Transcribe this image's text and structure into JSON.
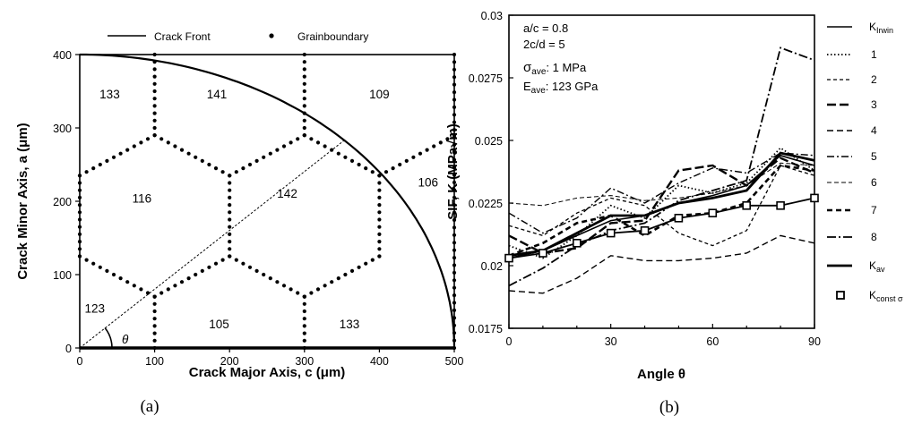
{
  "chart_data": [
    {
      "type": "scatter",
      "panel": "(a)",
      "xlabel": "Crack Major Axis, c (μm)",
      "ylabel": "Crack Minor Axis, a (μm)",
      "xlim": [
        0,
        500
      ],
      "ylim": [
        0,
        400
      ],
      "xticks": [
        "0",
        "100",
        "200",
        "300",
        "400",
        "500"
      ],
      "yticks": [
        "0",
        "100",
        "200",
        "300",
        "400"
      ],
      "legend": {
        "placement": "top",
        "entries": [
          "Crack Front",
          "Grainboundary"
        ]
      },
      "crack_front": {
        "shape": "quarter-ellipse",
        "c": 500,
        "a": 400
      },
      "angle_line": {
        "from": [
          0,
          0
        ],
        "to": [
          353,
          283
        ]
      },
      "angle_label": "θ",
      "grain_boundaries": [
        [
          [
            100,
            400
          ],
          [
            100,
            290
          ]
        ],
        [
          [
            100,
            290
          ],
          [
            0,
            235
          ]
        ],
        [
          [
            100,
            290
          ],
          [
            200,
            235
          ]
        ],
        [
          [
            200,
            235
          ],
          [
            200,
            125
          ]
        ],
        [
          [
            200,
            235
          ],
          [
            300,
            290
          ]
        ],
        [
          [
            300,
            400
          ],
          [
            300,
            290
          ]
        ],
        [
          [
            300,
            290
          ],
          [
            400,
            235
          ]
        ],
        [
          [
            400,
            235
          ],
          [
            500,
            290
          ]
        ],
        [
          [
            400,
            235
          ],
          [
            400,
            125
          ]
        ],
        [
          [
            0,
            235
          ],
          [
            0,
            125
          ]
        ],
        [
          [
            0,
            125
          ],
          [
            100,
            70
          ]
        ],
        [
          [
            100,
            70
          ],
          [
            200,
            125
          ]
        ],
        [
          [
            200,
            125
          ],
          [
            300,
            70
          ]
        ],
        [
          [
            300,
            70
          ],
          [
            400,
            125
          ]
        ],
        [
          [
            100,
            70
          ],
          [
            100,
            0
          ]
        ],
        [
          [
            300,
            70
          ],
          [
            300,
            0
          ]
        ],
        [
          [
            500,
            400
          ],
          [
            500,
            0
          ]
        ]
      ],
      "grain_labels": [
        {
          "text": "133",
          "x": 40,
          "y": 340
        },
        {
          "text": "141",
          "x": 183,
          "y": 340
        },
        {
          "text": "109",
          "x": 400,
          "y": 340
        },
        {
          "text": "106",
          "x": 465,
          "y": 220
        },
        {
          "text": "116",
          "x": 83,
          "y": 198
        },
        {
          "text": "142",
          "x": 277,
          "y": 205
        },
        {
          "text": "123",
          "x": 20,
          "y": 48
        },
        {
          "text": "105",
          "x": 186,
          "y": 27
        },
        {
          "text": "133",
          "x": 360,
          "y": 27
        }
      ]
    },
    {
      "type": "line",
      "panel": "(b)",
      "xlabel": "Angle θ",
      "ylabel": "SIF, K (MPa√m)",
      "xlim": [
        0,
        90
      ],
      "ylim": [
        0.0175,
        0.03
      ],
      "xticks": [
        "0",
        "30",
        "60",
        "90"
      ],
      "yticks": [
        "0.0175",
        "0.02",
        "0.0225",
        "0.025",
        "0.0275",
        "0.03"
      ],
      "annotations": [
        "a/c = 0.8",
        "2c/d = 5",
        "σave: 1 MPa",
        "Eave: 123 GPa"
      ],
      "legend_placement": "right",
      "series": [
        {
          "name": "KIrwin",
          "style": "solid-thin",
          "x": [
            0,
            10,
            20,
            30,
            40,
            50,
            60,
            70,
            80,
            90
          ],
          "y": [
            0.0203,
            0.0206,
            0.0212,
            0.0218,
            0.022,
            0.0225,
            0.0228,
            0.0232,
            0.0244,
            0.024
          ]
        },
        {
          "name": "1",
          "style": "dotted",
          "x": [
            0,
            10,
            20,
            30,
            40,
            50,
            60,
            70,
            80,
            90
          ],
          "y": [
            0.0208,
            0.0203,
            0.0212,
            0.0224,
            0.0219,
            0.0232,
            0.0229,
            0.0233,
            0.0247,
            0.0238
          ]
        },
        {
          "name": "2",
          "style": "short-dash",
          "x": [
            0,
            10,
            20,
            30,
            40,
            50,
            60,
            70,
            80,
            90
          ],
          "y": [
            0.0216,
            0.0212,
            0.0221,
            0.0227,
            0.0224,
            0.0213,
            0.0208,
            0.0214,
            0.024,
            0.0236
          ]
        },
        {
          "name": "3",
          "style": "long-dash-thick",
          "x": [
            0,
            10,
            20,
            30,
            40,
            50,
            60,
            70,
            80,
            90
          ],
          "y": [
            0.0212,
            0.0205,
            0.0207,
            0.0217,
            0.0218,
            0.0238,
            0.024,
            0.0232,
            0.0243,
            0.0237
          ]
        },
        {
          "name": "4",
          "style": "dash",
          "x": [
            0,
            10,
            20,
            30,
            40,
            50,
            60,
            70,
            80,
            90
          ],
          "y": [
            0.019,
            0.0189,
            0.0195,
            0.0204,
            0.0202,
            0.0202,
            0.0203,
            0.0205,
            0.0212,
            0.0209
          ]
        },
        {
          "name": "5",
          "style": "dash-dot",
          "x": [
            0,
            10,
            20,
            30,
            40,
            50,
            60,
            70,
            80,
            90
          ],
          "y": [
            0.0221,
            0.0213,
            0.0219,
            0.0231,
            0.0225,
            0.0233,
            0.0239,
            0.0237,
            0.0245,
            0.0244
          ]
        },
        {
          "name": "6",
          "style": "fine-dash",
          "x": [
            0,
            10,
            20,
            30,
            40,
            50,
            60,
            70,
            80,
            90
          ],
          "y": [
            0.0225,
            0.0224,
            0.0227,
            0.0228,
            0.0226,
            0.0227,
            0.0229,
            0.0232,
            0.0241,
            0.024
          ]
        },
        {
          "name": "7",
          "style": "heavy-dash",
          "x": [
            0,
            10,
            20,
            30,
            40,
            50,
            60,
            70,
            80,
            90
          ],
          "y": [
            0.0204,
            0.0209,
            0.0217,
            0.022,
            0.0212,
            0.022,
            0.0221,
            0.0225,
            0.024,
            0.0238
          ]
        },
        {
          "name": "8",
          "style": "dash-dot-thick",
          "x": [
            0,
            10,
            20,
            30,
            40,
            50,
            60,
            70,
            80,
            90
          ],
          "y": [
            0.0192,
            0.0199,
            0.0208,
            0.0214,
            0.0217,
            0.0226,
            0.023,
            0.0234,
            0.0287,
            0.0282
          ]
        },
        {
          "name": "Kav",
          "style": "solid-thick",
          "x": [
            0,
            10,
            20,
            30,
            40,
            50,
            60,
            70,
            80,
            90
          ],
          "y": [
            0.0204,
            0.0206,
            0.0213,
            0.022,
            0.022,
            0.0225,
            0.0227,
            0.023,
            0.0245,
            0.0242
          ]
        },
        {
          "name": "Kconst σ",
          "style": "open-square",
          "x": [
            0,
            10,
            20,
            30,
            40,
            50,
            60,
            70,
            80,
            90
          ],
          "y": [
            0.0203,
            0.0205,
            0.0209,
            0.0213,
            0.0214,
            0.0219,
            0.0221,
            0.0224,
            0.0224,
            0.0227
          ]
        }
      ]
    }
  ],
  "captions": {
    "a": "(a)",
    "b": "(b)"
  },
  "legend_b": {
    "kirwin": {
      "main": "K",
      "sub": "Irwin"
    },
    "items": [
      "1",
      "2",
      "3",
      "4",
      "5",
      "6",
      "7",
      "8"
    ],
    "kav": {
      "main": "K",
      "sub": "av"
    },
    "kconst": {
      "main": "K",
      "sub": "const σ"
    }
  },
  "annotation_b": {
    "ac": "a/c = 0.8",
    "cd": "2c/d = 5",
    "sigma": {
      "main": "σ",
      "sub": "ave",
      "rest": ": 1 MPa"
    },
    "e": {
      "main": "E",
      "sub": "ave",
      "rest": ": 123 GPa"
    }
  }
}
